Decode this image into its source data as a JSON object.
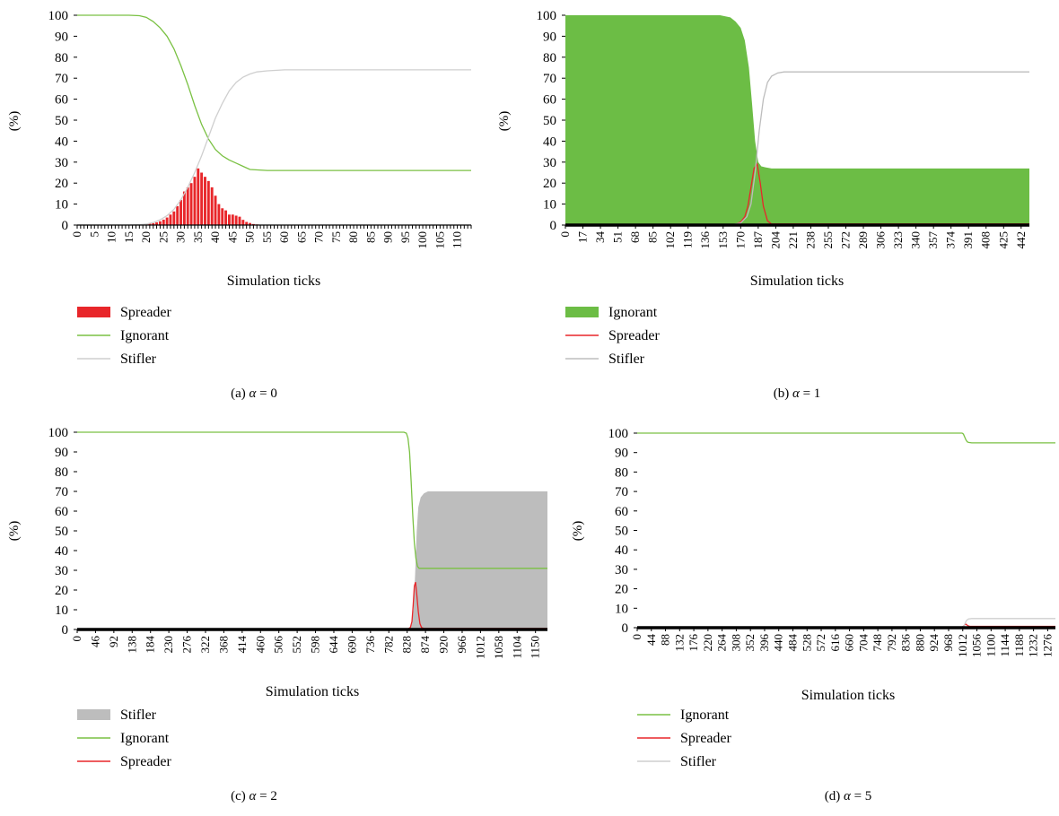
{
  "chart_data": [
    {
      "type": "bar+line",
      "panel": "(a)",
      "caption_prefix": "(a)",
      "caption_var": "α",
      "caption_eq": "= 0",
      "ylabel": "(%)",
      "xlabel": "Simulation ticks",
      "ylim": [
        0,
        100
      ],
      "yticks": [
        0,
        10,
        20,
        30,
        40,
        50,
        60,
        70,
        80,
        90,
        100
      ],
      "xlim": [
        0,
        114
      ],
      "xtick_step": 1,
      "xtick_label_step": 5,
      "legend": [
        {
          "name": "Spreader",
          "style": "bar",
          "color": "#e8262a"
        },
        {
          "name": "Ignorant",
          "style": "line",
          "color": "#7ac143"
        },
        {
          "name": "Stifler",
          "style": "line",
          "color": "#cfcfcf"
        }
      ],
      "series": [
        {
          "name": "Spreader",
          "kind": "bar",
          "color": "#e8262a",
          "x": [
            18,
            19,
            20,
            21,
            22,
            23,
            24,
            25,
            26,
            27,
            28,
            29,
            30,
            31,
            32,
            33,
            34,
            35,
            36,
            37,
            38,
            39,
            40,
            41,
            42,
            43,
            44,
            45,
            46,
            47,
            48,
            49,
            50,
            51,
            52,
            53
          ],
          "values": [
            0.3,
            0.4,
            0.5,
            0.7,
            0.9,
            1.3,
            1.8,
            2.6,
            3.6,
            5,
            6.5,
            9,
            12,
            16,
            18,
            20,
            23,
            27,
            25,
            23,
            21,
            18,
            14,
            10,
            8,
            7,
            5,
            5,
            4.5,
            4,
            2.5,
            1.5,
            1,
            0.5,
            0.3,
            0.2
          ]
        },
        {
          "name": "Ignorant",
          "kind": "line",
          "color": "#7ac143",
          "x": [
            0,
            15,
            18,
            20,
            22,
            24,
            26,
            28,
            30,
            32,
            34,
            36,
            38,
            40,
            42,
            44,
            46,
            48,
            50,
            55,
            60,
            114
          ],
          "values": [
            100,
            100,
            99.8,
            99,
            97,
            94,
            90,
            84,
            76,
            67,
            57,
            48,
            41,
            36,
            33,
            31,
            29.5,
            28,
            26.5,
            26,
            26,
            26
          ]
        },
        {
          "name": "Stifler",
          "kind": "line",
          "color": "#cfcfcf",
          "x": [
            0,
            15,
            18,
            20,
            22,
            24,
            26,
            28,
            30,
            32,
            34,
            36,
            38,
            40,
            42,
            44,
            46,
            48,
            50,
            52,
            55,
            60,
            114
          ],
          "values": [
            0,
            0,
            0.2,
            0.5,
            1.2,
            2.5,
            4.5,
            7.5,
            12,
            18,
            25,
            33,
            42,
            51,
            58,
            64,
            68,
            70.5,
            72,
            73,
            73.5,
            74,
            74
          ]
        }
      ]
    },
    {
      "type": "area+line",
      "panel": "(b)",
      "caption_prefix": "(b)",
      "caption_var": "α",
      "caption_eq": "= 1",
      "ylabel": "(%)",
      "xlabel": "Simulation ticks",
      "ylim": [
        0,
        100
      ],
      "yticks": [
        0,
        10,
        20,
        30,
        40,
        50,
        60,
        70,
        80,
        90,
        100
      ],
      "xlim": [
        0,
        450
      ],
      "xticks": [
        0,
        17,
        34,
        51,
        68,
        85,
        102,
        119,
        136,
        153,
        170,
        187,
        204,
        221,
        238,
        255,
        272,
        289,
        306,
        323,
        340,
        357,
        374,
        391,
        408,
        425,
        442
      ],
      "legend": [
        {
          "name": "Ignorant",
          "style": "bar",
          "color": "#6cbd45"
        },
        {
          "name": "Spreader",
          "style": "line",
          "color": "#e8262a"
        },
        {
          "name": "Stifler",
          "style": "line",
          "color": "#bdbdbd"
        }
      ],
      "series": [
        {
          "name": "Ignorant",
          "kind": "area",
          "color": "#6cbd45",
          "x": [
            0,
            150,
            160,
            165,
            170,
            174,
            178,
            181,
            184,
            187,
            190,
            194,
            200,
            450
          ],
          "values": [
            100,
            100,
            99,
            97,
            94,
            88,
            75,
            58,
            40,
            30,
            28,
            27.5,
            27,
            27
          ]
        },
        {
          "name": "Spreader",
          "kind": "line",
          "color": "#e8262a",
          "x": [
            0,
            160,
            166,
            170,
            174,
            177,
            180,
            183,
            186,
            189,
            192,
            196,
            200,
            450
          ],
          "values": [
            0,
            0,
            0.5,
            1.5,
            4,
            9,
            18,
            27,
            29,
            20,
            9,
            2,
            0.5,
            0.5
          ]
        },
        {
          "name": "Stifler",
          "kind": "line",
          "color": "#bdbdbd",
          "x": [
            0,
            160,
            170,
            176,
            180,
            184,
            188,
            192,
            196,
            200,
            206,
            212,
            450
          ],
          "values": [
            0,
            0,
            1,
            4,
            10,
            25,
            45,
            60,
            68,
            71,
            72.5,
            73,
            73
          ]
        }
      ]
    },
    {
      "type": "area+line",
      "panel": "(c)",
      "caption_prefix": "(c)",
      "caption_var": "α",
      "caption_eq": "= 2",
      "ylabel": "(%)",
      "xlabel": "Simulation ticks",
      "ylim": [
        0,
        100
      ],
      "yticks": [
        0,
        10,
        20,
        30,
        40,
        50,
        60,
        70,
        80,
        90,
        100
      ],
      "xlim": [
        0,
        1180
      ],
      "xticks": [
        0,
        46,
        92,
        138,
        184,
        230,
        276,
        322,
        368,
        414,
        460,
        506,
        552,
        598,
        644,
        690,
        736,
        782,
        828,
        874,
        920,
        966,
        1012,
        1058,
        1104,
        1150
      ],
      "legend": [
        {
          "name": "Stifler",
          "style": "bar",
          "color": "#bdbdbd"
        },
        {
          "name": "Ignorant",
          "style": "line",
          "color": "#7ac143"
        },
        {
          "name": "Spreader",
          "style": "line",
          "color": "#e8262a"
        }
      ],
      "series": [
        {
          "name": "Stifler",
          "kind": "area",
          "color": "#bdbdbd",
          "x": [
            0,
            830,
            836,
            840,
            844,
            848,
            852,
            856,
            862,
            870,
            880,
            1180
          ],
          "values": [
            0,
            0,
            0.5,
            3,
            10,
            28,
            50,
            62,
            67,
            69,
            70,
            70
          ]
        },
        {
          "name": "Ignorant",
          "kind": "line",
          "color": "#7ac143",
          "x": [
            0,
            820,
            826,
            830,
            834,
            838,
            842,
            846,
            850,
            854,
            858,
            866,
            880,
            1180
          ],
          "values": [
            100,
            100,
            99.5,
            97,
            90,
            75,
            58,
            44,
            36,
            32,
            31,
            31,
            31,
            31
          ]
        },
        {
          "name": "Spreader",
          "kind": "line",
          "color": "#e8262a",
          "x": [
            0,
            830,
            836,
            840,
            843,
            846,
            849,
            852,
            856,
            860,
            864,
            870,
            1180
          ],
          "values": [
            0.3,
            0.3,
            1,
            4,
            12,
            22,
            24,
            18,
            9,
            3,
            1,
            0.5,
            0.5
          ]
        }
      ]
    },
    {
      "type": "line",
      "panel": "(d)",
      "caption_prefix": "(d)",
      "caption_var": "α",
      "caption_eq": "= 5",
      "ylabel": "(%)",
      "xlabel": "Simulation ticks",
      "ylim": [
        0,
        100
      ],
      "yticks": [
        0,
        10,
        20,
        30,
        40,
        50,
        60,
        70,
        80,
        90,
        100
      ],
      "xlim": [
        0,
        1300
      ],
      "xticks": [
        0,
        44,
        88,
        132,
        176,
        220,
        264,
        308,
        352,
        396,
        440,
        484,
        528,
        572,
        616,
        660,
        704,
        748,
        792,
        836,
        880,
        924,
        968,
        1012,
        1056,
        1100,
        1144,
        1188,
        1232,
        1276
      ],
      "legend": [
        {
          "name": "Ignorant",
          "style": "line",
          "color": "#7ac143"
        },
        {
          "name": "Spreader",
          "style": "line",
          "color": "#e8262a"
        },
        {
          "name": "Stifler",
          "style": "line",
          "color": "#cfcfcf"
        }
      ],
      "series": [
        {
          "name": "Ignorant",
          "kind": "line",
          "color": "#7ac143",
          "x": [
            0,
            1010,
            1014,
            1018,
            1022,
            1026,
            1030,
            1040,
            1300
          ],
          "values": [
            100,
            100,
            99.5,
            98,
            96.5,
            95.5,
            95.2,
            95,
            95
          ]
        },
        {
          "name": "Spreader",
          "kind": "line",
          "color": "#e8262a",
          "x": [
            0,
            1010,
            1016,
            1020,
            1024,
            1028,
            1034,
            1300
          ],
          "values": [
            0.3,
            0.3,
            1,
            2,
            1.5,
            1,
            0.7,
            0.7
          ]
        },
        {
          "name": "Stifler",
          "kind": "line",
          "color": "#cfcfcf",
          "x": [
            0,
            1010,
            1016,
            1020,
            1024,
            1030,
            1040,
            1300
          ],
          "values": [
            0,
            0,
            1,
            2.5,
            3.8,
            4.5,
            4.7,
            4.7
          ]
        }
      ]
    }
  ]
}
